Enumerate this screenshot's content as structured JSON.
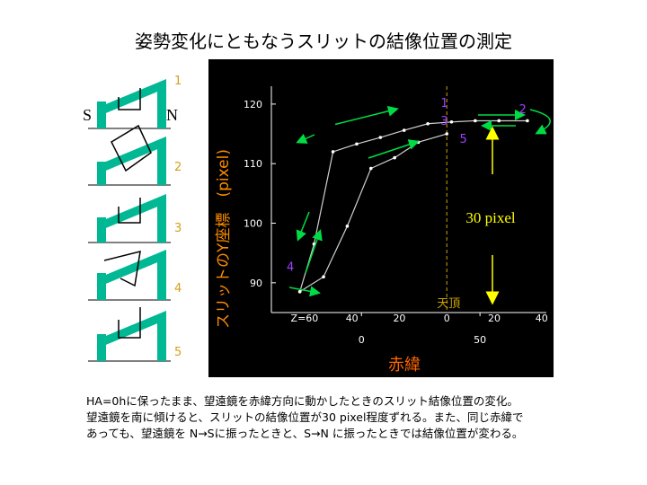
{
  "title": "姿勢変化にともなうスリットの結像位置の測定",
  "diagram": {
    "south_label": "S",
    "north_label": "N",
    "numbers": [
      "1",
      "2",
      "3",
      "4",
      "5"
    ],
    "accent_color": "#00b894",
    "number_color": "#d4a017"
  },
  "chart_data": {
    "type": "line",
    "title": "",
    "xlabel": "赤緯",
    "ylabel": "スリットのY座標　(pixel)",
    "x_tick_labels": [
      "0",
      "50"
    ],
    "x_ticks_values": [
      0,
      50
    ],
    "y_ticks": [
      90,
      100,
      110,
      120
    ],
    "ylim": [
      85,
      123
    ],
    "xlim": [
      -38,
      78
    ],
    "zenith_x": 36,
    "zenith_label": "天頂",
    "za_labels": [
      "Z=60",
      "40",
      "20",
      "0",
      "20",
      "40"
    ],
    "za_x": [
      -24,
      -4,
      16,
      36,
      56,
      76
    ],
    "annotation_30px": "30 pixel",
    "sequence_labels": [
      {
        "text": "1",
        "x": 35,
        "y": 119.5
      },
      {
        "text": "2",
        "x": 68,
        "y": 118.5
      },
      {
        "text": "3",
        "x": 35,
        "y": 116.5
      },
      {
        "text": "4",
        "x": -30,
        "y": 92
      },
      {
        "text": "5",
        "x": 43,
        "y": 113.5
      }
    ],
    "series": [
      {
        "values_x": [
          -26,
          -20,
          -12,
          -2,
          8,
          18,
          28,
          38,
          48,
          58,
          70
        ],
        "values_y": [
          88.5,
          96.5,
          112,
          113.3,
          114.4,
          115.6,
          116.7,
          117,
          117.2,
          117.2,
          117.2
        ]
      },
      {
        "values_x": [
          -26,
          -16,
          -6,
          4,
          14,
          24,
          36
        ],
        "values_y": [
          88.5,
          91,
          99.5,
          109.2,
          111,
          113.6,
          115
        ]
      }
    ],
    "colors": {
      "line": "#d0d0d0",
      "arrow": "#00dd44",
      "label": "#ffff00",
      "seq": "#a040ff",
      "axis": "#ffffff",
      "zenith": "#c8a000",
      "xlabel": "#ff6600"
    }
  },
  "caption": {
    "line1": "HA=0hに保ったまま、望遠鏡を赤緯方向に動かしたときのスリット結像位置の変化。",
    "line2": "望遠鏡を南に傾けると、スリットの結像位置が30 pixel程度ずれる。また、同じ赤緯で",
    "line3": "あっても、望遠鏡を N→Sに振ったときと、S→N に振ったときでは結像位置が変わる。"
  }
}
